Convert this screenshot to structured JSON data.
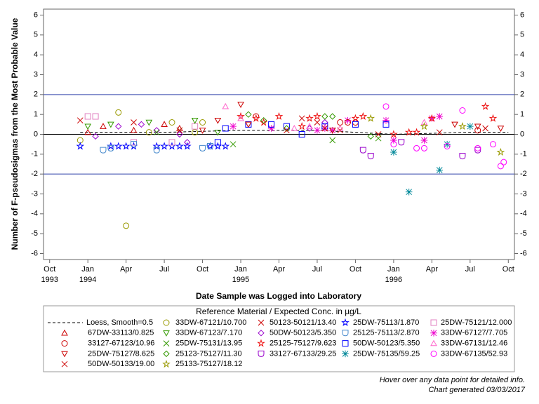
{
  "chart_data": {
    "type": "scatter",
    "y_label": "Number of F-pseudosigmas from the Most Probable Value",
    "x_label": "Date Sample was Logged into Laboratory",
    "legend_title": "Reference Material / Expected Conc. in µg/L",
    "xlim": [
      1993.71,
      1996.79
    ],
    "ylim": [
      -6.3,
      6.3
    ],
    "yticks": [
      -6,
      -5,
      -4,
      -3,
      -2,
      -1,
      0,
      1,
      2,
      3,
      4,
      5,
      6
    ],
    "xticks": [
      {
        "value": 1993.75,
        "label": "Oct",
        "year": "1993"
      },
      {
        "value": 1994.0,
        "label": "Jan",
        "year": "1994"
      },
      {
        "value": 1994.25,
        "label": "Apr"
      },
      {
        "value": 1994.5,
        "label": "Jul"
      },
      {
        "value": 1994.75,
        "label": "Oct"
      },
      {
        "value": 1995.0,
        "label": "Jan",
        "year": "1995"
      },
      {
        "value": 1995.25,
        "label": "Apr"
      },
      {
        "value": 1995.5,
        "label": "Jul"
      },
      {
        "value": 1995.75,
        "label": "Oct"
      },
      {
        "value": 1996.0,
        "label": "Jan",
        "year": "1996"
      },
      {
        "value": 1996.25,
        "label": "Apr"
      },
      {
        "value": 1996.5,
        "label": "Jul"
      },
      {
        "value": 1996.75,
        "label": "Oct"
      }
    ],
    "reference_lines": [
      {
        "value": 2,
        "color": "#3344aa"
      },
      {
        "value": 0,
        "color": "#000000"
      },
      {
        "value": -2,
        "color": "#3344aa"
      }
    ],
    "series": [
      {
        "name": "Loess, Smooth=0.5",
        "color": "#000000",
        "marker": "line",
        "x": [
          1993.95,
          1994.5,
          1995.0,
          1995.5,
          1996.0,
          1996.5,
          1996.75
        ],
        "values": [
          0.1,
          0.1,
          0.2,
          0.2,
          0.0,
          0.1,
          0.1
        ]
      },
      {
        "name": "33DW-67121/10.700",
        "color": "#999900",
        "marker": "circle",
        "x": [
          1993.95,
          1994.2,
          1994.25,
          1994.4,
          1994.55,
          1994.7,
          1994.75
        ],
        "values": [
          -0.3,
          1.1,
          -4.6,
          0.1,
          0.6,
          0.1,
          0.6
        ]
      },
      {
        "name": "50123-50121/13.40",
        "color": "#cc0000",
        "marker": "x",
        "x": [
          1995.4,
          1995.5,
          1995.65,
          1995.9
        ],
        "values": [
          0.8,
          0.6,
          0.2,
          0.0
        ]
      },
      {
        "name": "25DW-75113/1.870",
        "color": "#0000ff",
        "marker": "star",
        "x": [
          1993.95,
          1994.15,
          1994.2,
          1994.25,
          1994.3,
          1994.45,
          1994.5,
          1994.55,
          1994.6,
          1994.65,
          1994.8,
          1994.85,
          1994.9
        ],
        "values": [
          -0.6,
          -0.6,
          -0.6,
          -0.6,
          -0.6,
          -0.6,
          -0.6,
          -0.6,
          -0.6,
          -0.6,
          -0.6,
          -0.6,
          -0.6
        ]
      },
      {
        "name": "25DW-75121/12.000",
        "color": "#e080c0",
        "marker": "square",
        "x": [
          1994.0,
          1994.05,
          1994.3,
          1994.55,
          1994.7
        ],
        "values": [
          0.9,
          0.9,
          -0.4,
          -0.4,
          0.4
        ]
      },
      {
        "name": "67DW-33113/0.825",
        "color": "#cc0000",
        "marker": "triangle",
        "x": [
          1994.0,
          1994.1,
          1994.3,
          1994.5,
          1994.6
        ],
        "values": [
          0.1,
          0.4,
          0.2,
          0.5,
          0.3
        ]
      },
      {
        "name": "33DW-67123/7.170",
        "color": "#339900",
        "marker": "triangle-down",
        "x": [
          1994.0,
          1994.15,
          1994.4,
          1994.7,
          1994.85
        ],
        "values": [
          0.4,
          0.5,
          0.6,
          0.7,
          0.1
        ]
      },
      {
        "name": "50DW-50123/5.350",
        "color": "#9900cc",
        "marker": "diamond",
        "x": [
          1994.05,
          1994.2,
          1994.35,
          1994.45,
          1994.6,
          1994.65,
          1995.45,
          1995.55
        ],
        "values": [
          -0.1,
          0.4,
          0.5,
          0.2,
          0.0,
          -0.4,
          0.3,
          0.6
        ]
      },
      {
        "name": "25125-75113/2.870",
        "color": "#4488cc",
        "marker": "cup",
        "x": [
          1994.1,
          1994.15,
          1994.3,
          1994.45,
          1994.75,
          1994.8
        ],
        "values": [
          -0.8,
          -0.7,
          -0.5,
          -0.8,
          -0.7,
          -0.6
        ]
      },
      {
        "name": "33DW-67127/7.705",
        "color": "#ee00cc",
        "marker": "asterisk",
        "x": [
          1994.95,
          1995.2,
          1995.5,
          1995.55,
          1995.6,
          1995.7,
          1995.95,
          1996.0,
          1996.2,
          1996.25,
          1996.3
        ],
        "values": [
          0.4,
          0.3,
          0.2,
          0.3,
          0.2,
          0.7,
          0.7,
          -0.3,
          -0.3,
          0.8,
          0.9
        ]
      },
      {
        "name": "33127-67123/10.96",
        "color": "#cc0000",
        "marker": "circle",
        "x": [
          1995.1,
          1995.65,
          1995.7,
          1995.75,
          1996.55
        ],
        "values": [
          0.9,
          0.6,
          0.6,
          0.6,
          0.2
        ]
      },
      {
        "name": "25DW-75131/13.95",
        "color": "#339900",
        "marker": "x",
        "x": [
          1994.45,
          1994.6,
          1994.95,
          1995.6,
          1995.9
        ],
        "values": [
          0.1,
          0.2,
          -0.5,
          -0.3,
          -0.2
        ]
      },
      {
        "name": "25125-75127/9.623",
        "color": "#ee1111",
        "marker": "star",
        "x": [
          1995.0,
          1995.1,
          1995.15,
          1995.25,
          1995.4,
          1995.45,
          1995.5,
          1995.75,
          1995.8,
          1996.0,
          1996.1,
          1996.15,
          1996.25,
          1996.6,
          1996.65
        ],
        "values": [
          0.9,
          0.8,
          0.6,
          0.9,
          0.4,
          0.8,
          0.9,
          0.8,
          0.9,
          0.0,
          0.1,
          0.1,
          0.8,
          1.4,
          0.8
        ]
      },
      {
        "name": "50DW-50123/5.350",
        "color": "#0000ff",
        "marker": "square",
        "x": [
          1994.85,
          1994.9,
          1995.05,
          1995.2,
          1995.3,
          1995.4,
          1995.55,
          1995.75,
          1995.95
        ],
        "values": [
          -0.4,
          0.3,
          0.5,
          0.5,
          0.4,
          0.0,
          0.4,
          0.5,
          0.5
        ]
      },
      {
        "name": "33DW-67131/12.46",
        "color": "#ff66cc",
        "marker": "triangle",
        "x": [
          1994.9,
          1995.0,
          1995.35,
          1995.45,
          1995.55,
          1995.65,
          1996.2
        ],
        "values": [
          1.4,
          0.8,
          0.3,
          0.4,
          0.3,
          0.3,
          0.6
        ]
      },
      {
        "name": "25DW-75127/8.625",
        "color": "#cc0000",
        "marker": "triangle-down",
        "x": [
          1994.75,
          1994.85,
          1995.0,
          1995.05,
          1995.6,
          1996.4,
          1996.55,
          1996.7
        ],
        "values": [
          0.2,
          0.7,
          1.5,
          0.5,
          0.2,
          0.5,
          0.4,
          0.3
        ]
      },
      {
        "name": "25123-75127/11.30",
        "color": "#339900",
        "marker": "diamond",
        "x": [
          1995.05,
          1995.15,
          1995.3,
          1995.55,
          1995.6,
          1995.85
        ],
        "values": [
          1.0,
          0.7,
          0.3,
          0.9,
          0.9,
          -0.1
        ]
      },
      {
        "name": "33127-67133/29.25",
        "color": "#9900cc",
        "marker": "cup",
        "x": [
          1995.8,
          1995.85,
          1996.05,
          1996.45,
          1996.55
        ],
        "values": [
          -0.8,
          -1.1,
          -0.4,
          -1.1,
          -0.8
        ]
      },
      {
        "name": "25DW-75135/59.25",
        "color": "#008899",
        "marker": "asterisk",
        "x": [
          1996.0,
          1996.1,
          1996.3,
          1996.35,
          1996.5
        ],
        "values": [
          -0.9,
          -2.9,
          -1.8,
          -0.5,
          0.4
        ]
      },
      {
        "name": "33DW-67135/52.93",
        "color": "#ff00ff",
        "marker": "circle",
        "x": [
          1995.95,
          1996.0,
          1996.15,
          1996.2,
          1996.35,
          1996.45,
          1996.55,
          1996.65,
          1996.7,
          1996.72
        ],
        "values": [
          1.4,
          -0.5,
          -0.7,
          -0.7,
          -0.6,
          1.2,
          -0.7,
          -0.5,
          -1.6,
          -1.4
        ]
      },
      {
        "name": "50DW-50133/19.00",
        "color": "#cc0000",
        "marker": "x",
        "x": [
          1993.95,
          1994.3,
          1994.6,
          1995.3,
          1995.55,
          1996.3,
          1996.6
        ],
        "values": [
          0.7,
          0.6,
          0.2,
          0.2,
          0.3,
          0.1,
          0.3
        ]
      },
      {
        "name": "25133-75127/18.12",
        "color": "#999900",
        "marker": "star",
        "x": [
          1995.85,
          1996.2,
          1996.45,
          1996.7
        ],
        "values": [
          0.8,
          0.4,
          0.4,
          -0.9
        ]
      }
    ]
  },
  "notes": [
    "Hover over any data point for detailed info.",
    "Chart generated 03/03/2017"
  ]
}
